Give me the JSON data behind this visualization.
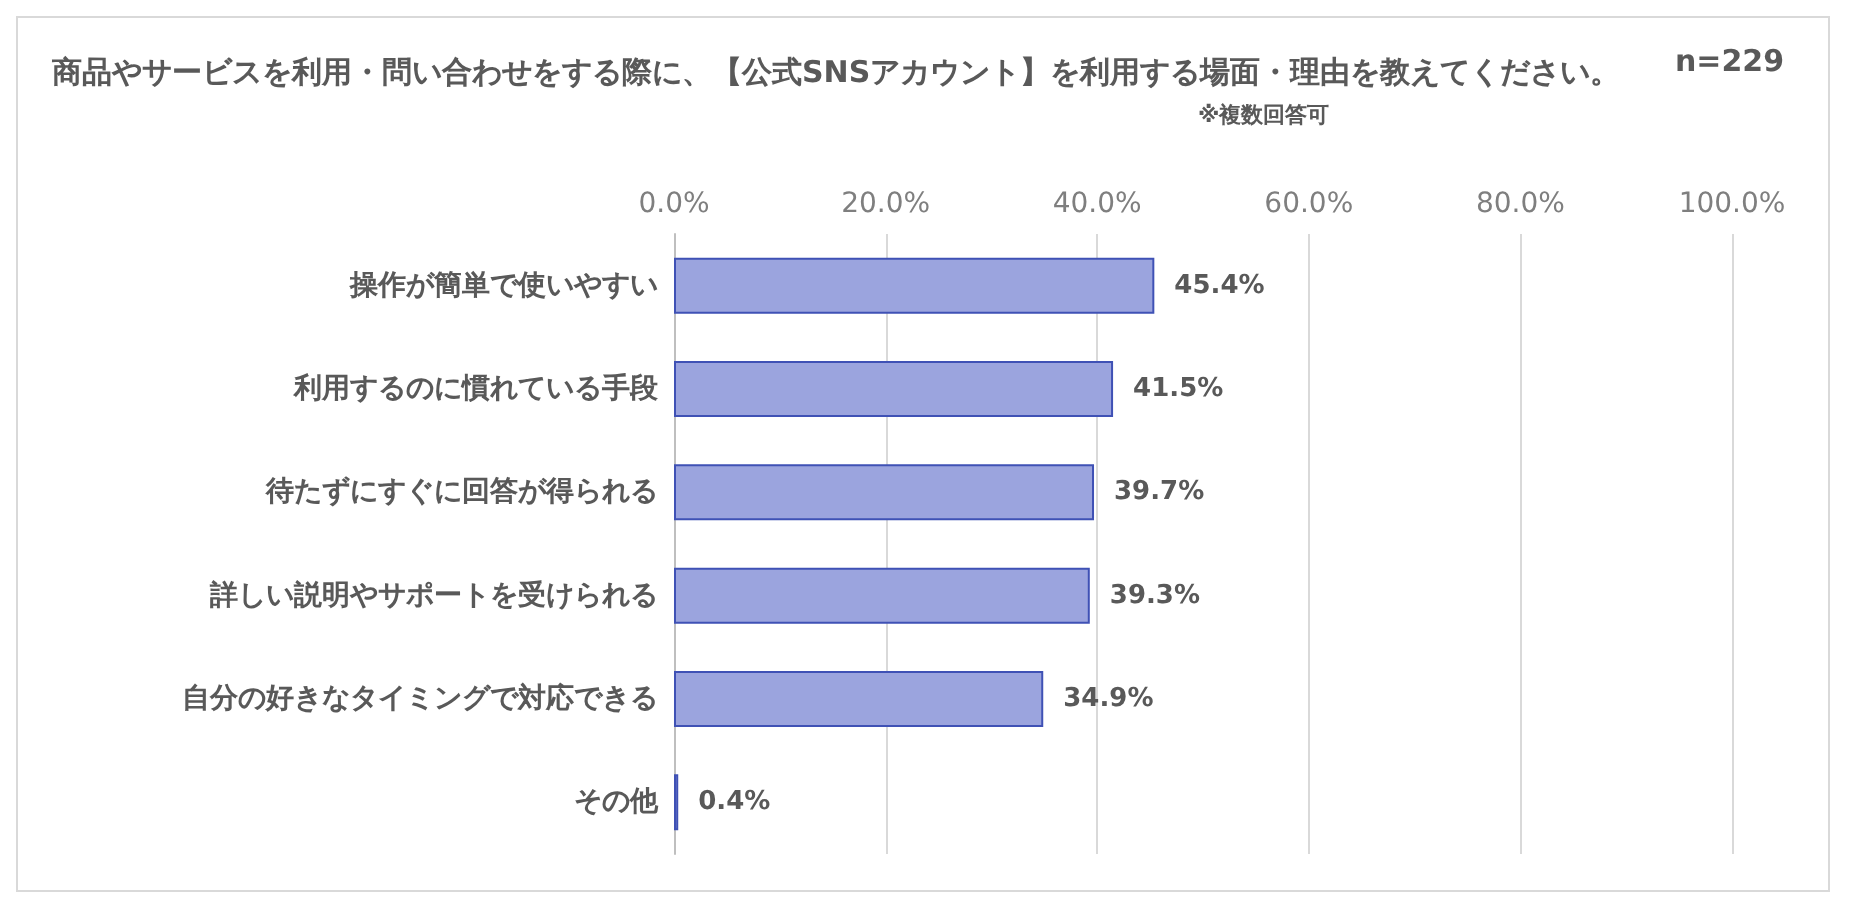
{
  "chart_data": {
    "type": "bar",
    "orientation": "horizontal",
    "title": "商品やサービスを利用・問い合わせをする際に、【公式SNSアカウント】を利用する場面・理由を教えてください。",
    "annotations": [
      "※複数回答可",
      "n=229"
    ],
    "categories": [
      "操作が簡単で使いやすい",
      "利用するのに慣れている手段",
      "待たずにすぐに回答が得られる",
      "詳しい説明やサポートを受けられる",
      "自分の好きなタイミングで対応できる",
      "その他"
    ],
    "values": [
      45.4,
      41.5,
      39.7,
      39.3,
      34.9,
      0.4
    ],
    "value_labels": [
      "45.4%",
      "41.5%",
      "39.7%",
      "39.3%",
      "34.9%",
      "0.4%"
    ],
    "color": "#9ba4de",
    "xlim": [
      0,
      100
    ],
    "xticks": [
      {
        "value": 0,
        "label": "0.0%"
      },
      {
        "value": 20,
        "label": "20.0%"
      },
      {
        "value": 40,
        "label": "40.0%"
      },
      {
        "value": 60,
        "label": "60.0%"
      },
      {
        "value": 80,
        "label": "80.0%"
      },
      {
        "value": 100,
        "label": "100.0%"
      }
    ],
    "grid": "x"
  }
}
